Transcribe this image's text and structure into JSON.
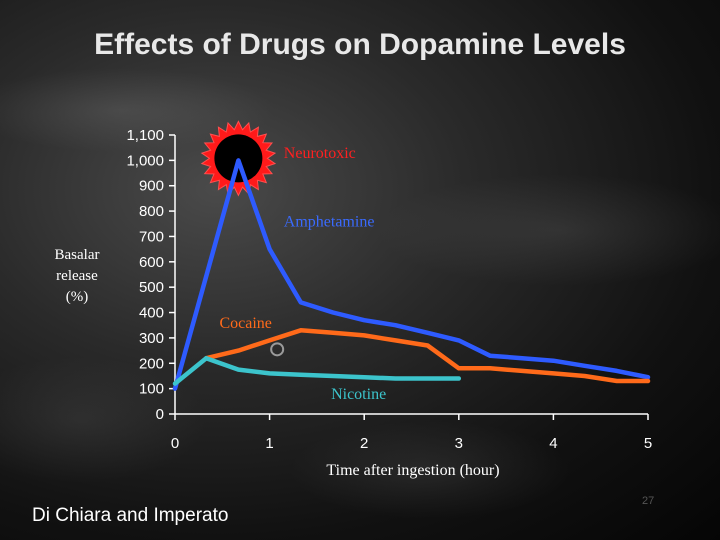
{
  "slide": {
    "credit": "Di Chiara and Imperato",
    "slide_number": "27"
  },
  "chart_data": {
    "type": "line",
    "title": "Effects of Drugs on Dopamine Levels",
    "xlabel": "Time after ingestion (hour)",
    "ylabel_lines": [
      "Basalar",
      "release",
      "(%)"
    ],
    "xlim": [
      0,
      5
    ],
    "ylim": [
      0,
      1100
    ],
    "x_ticks": [
      0,
      1,
      2,
      3,
      4,
      5
    ],
    "y_ticks": [
      0,
      100,
      200,
      300,
      400,
      500,
      600,
      700,
      800,
      900,
      1000,
      1100
    ],
    "y_tick_labels": [
      "0",
      "100",
      "200",
      "300",
      "400",
      "500",
      "600",
      "700",
      "800",
      "900",
      "1,000",
      "1,100"
    ],
    "series": [
      {
        "name": "Amphetamine",
        "color": "#2e5bff",
        "x": [
          0,
          0.67,
          1.0,
          1.33,
          1.67,
          2.0,
          2.33,
          2.67,
          3.0,
          3.33,
          3.67,
          4.0,
          4.33,
          4.67,
          5.0
        ],
        "y": [
          100,
          1000,
          650,
          440,
          400,
          370,
          350,
          320,
          290,
          230,
          220,
          210,
          190,
          170,
          145
        ]
      },
      {
        "name": "Cocaine",
        "color": "#ff6a1a",
        "x": [
          0.33,
          0.67,
          1.0,
          1.33,
          1.67,
          2.0,
          2.33,
          2.67,
          3.0,
          3.33,
          3.67,
          4.0,
          4.33,
          4.67,
          5.0
        ],
        "y": [
          220,
          250,
          290,
          330,
          320,
          310,
          290,
          270,
          180,
          180,
          170,
          160,
          150,
          130,
          130
        ]
      },
      {
        "name": "Nicotine",
        "color": "#3cc4cc",
        "x": [
          0,
          0.33,
          0.67,
          1.0,
          1.33,
          1.67,
          2.0,
          2.33,
          2.67,
          3.0
        ],
        "y": [
          120,
          220,
          175,
          160,
          155,
          150,
          145,
          140,
          140,
          140
        ]
      }
    ],
    "annotations": [
      {
        "text": "Neurotoxic",
        "color": "#ff2020",
        "x": 1.15,
        "y": 1010
      },
      {
        "text": "Amphetamine",
        "color": "#3a6bff",
        "x": 1.15,
        "y": 740
      },
      {
        "text": "Cocaine",
        "color": "#ff6a1a",
        "x": 0.47,
        "y": 340
      },
      {
        "text": "Nicotine",
        "color": "#3cc4cc",
        "x": 1.65,
        "y": 60
      }
    ]
  }
}
